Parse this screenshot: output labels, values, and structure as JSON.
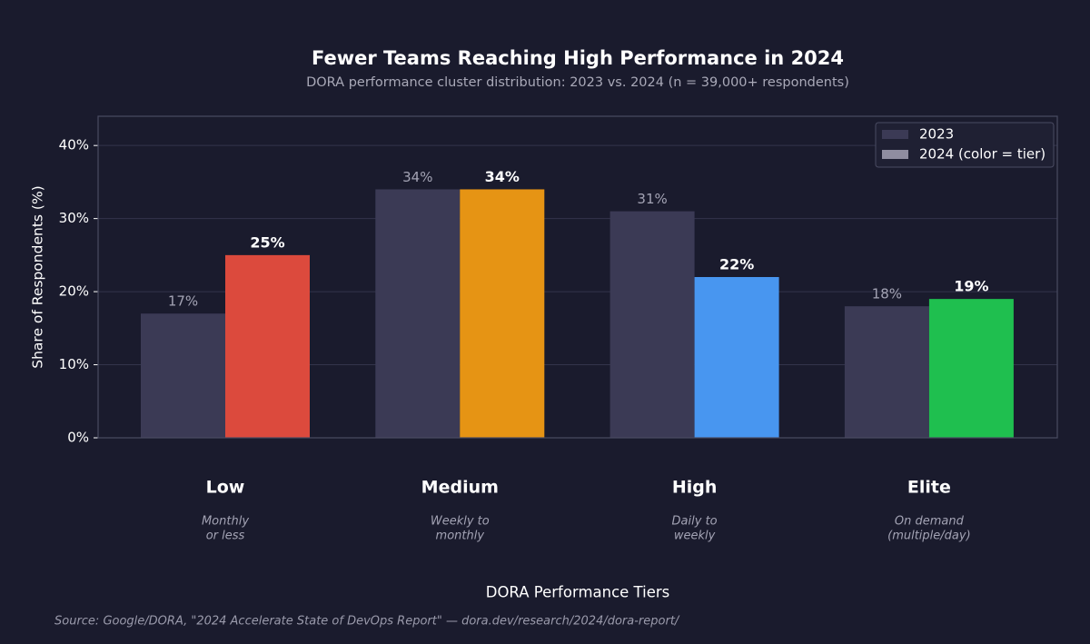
{
  "chart_data": {
    "type": "bar",
    "title": "Fewer Teams Reaching High Performance in 2024",
    "subtitle": "DORA performance cluster distribution: 2023 vs. 2024  (n = 39,000+ respondents)",
    "x_label": "DORA Performance Tiers",
    "y_label": "Share of Respondents (%)",
    "source": "Source: Google/DORA, \"2024 Accelerate State of DevOps Report\" — dora.dev/research/2024/dora-report/",
    "categories": [
      "Low",
      "Medium",
      "High",
      "Elite"
    ],
    "category_notes": [
      [
        "Monthly",
        "or less"
      ],
      [
        "Weekly to",
        "monthly"
      ],
      [
        "Daily to",
        "weekly"
      ],
      [
        "On demand",
        "(multiple/day)"
      ]
    ],
    "series": [
      {
        "name": "2023",
        "color": "#3b3a55",
        "values": [
          17,
          34,
          31,
          18
        ],
        "value_labels": [
          "17%",
          "34%",
          "31%",
          "18%"
        ]
      },
      {
        "name": "2024 (color = tier)",
        "color": "#8f8da0",
        "colors": [
          "#dc4a3d",
          "#e69414",
          "#4896f0",
          "#1fbf4f"
        ],
        "values": [
          25,
          34,
          22,
          19
        ],
        "value_labels": [
          "25%",
          "34%",
          "22%",
          "19%"
        ]
      }
    ],
    "ylim": [
      0,
      44
    ],
    "yticks": [
      {
        "value": 0,
        "label": "0%"
      },
      {
        "value": 10,
        "label": "10%"
      },
      {
        "value": 20,
        "label": "20%"
      },
      {
        "value": 30,
        "label": "30%"
      },
      {
        "value": 40,
        "label": "40%"
      }
    ],
    "grid": true,
    "legend": "upper-right"
  }
}
